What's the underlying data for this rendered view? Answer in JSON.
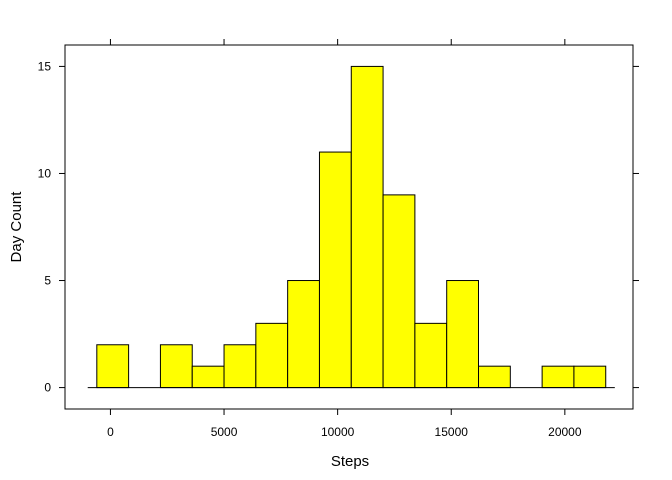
{
  "chart_data": {
    "type": "histogram",
    "title": "",
    "xlabel": "Steps",
    "ylabel": "Day Count",
    "xlim": [
      -2000,
      23000
    ],
    "ylim": [
      -1,
      16
    ],
    "xticks": [
      0,
      5000,
      10000,
      15000,
      20000
    ],
    "yticks": [
      0,
      5,
      10,
      15
    ],
    "xtick_labels": [
      "0",
      "5000",
      "10000",
      "15000",
      "20000"
    ],
    "ytick_labels": [
      "0",
      "5",
      "10",
      "15"
    ],
    "baseline_range": [
      -1000,
      22200
    ],
    "bins": [
      {
        "start": -600,
        "end": 800,
        "count": 2
      },
      {
        "start": 800,
        "end": 2200,
        "count": 0
      },
      {
        "start": 2200,
        "end": 3600,
        "count": 2
      },
      {
        "start": 3600,
        "end": 5000,
        "count": 1
      },
      {
        "start": 5000,
        "end": 6400,
        "count": 2
      },
      {
        "start": 6400,
        "end": 7800,
        "count": 3
      },
      {
        "start": 7800,
        "end": 9200,
        "count": 5
      },
      {
        "start": 9200,
        "end": 10600,
        "count": 11
      },
      {
        "start": 10600,
        "end": 12000,
        "count": 15
      },
      {
        "start": 12000,
        "end": 13400,
        "count": 9
      },
      {
        "start": 13400,
        "end": 14800,
        "count": 3
      },
      {
        "start": 14800,
        "end": 16200,
        "count": 5
      },
      {
        "start": 16200,
        "end": 17600,
        "count": 1
      },
      {
        "start": 17600,
        "end": 19000,
        "count": 0
      },
      {
        "start": 19000,
        "end": 20400,
        "count": 1
      },
      {
        "start": 20400,
        "end": 21800,
        "count": 1
      }
    ],
    "colors": {
      "bar_fill": "#ffff00",
      "bar_stroke": "#000000",
      "frame": "#000000"
    }
  }
}
